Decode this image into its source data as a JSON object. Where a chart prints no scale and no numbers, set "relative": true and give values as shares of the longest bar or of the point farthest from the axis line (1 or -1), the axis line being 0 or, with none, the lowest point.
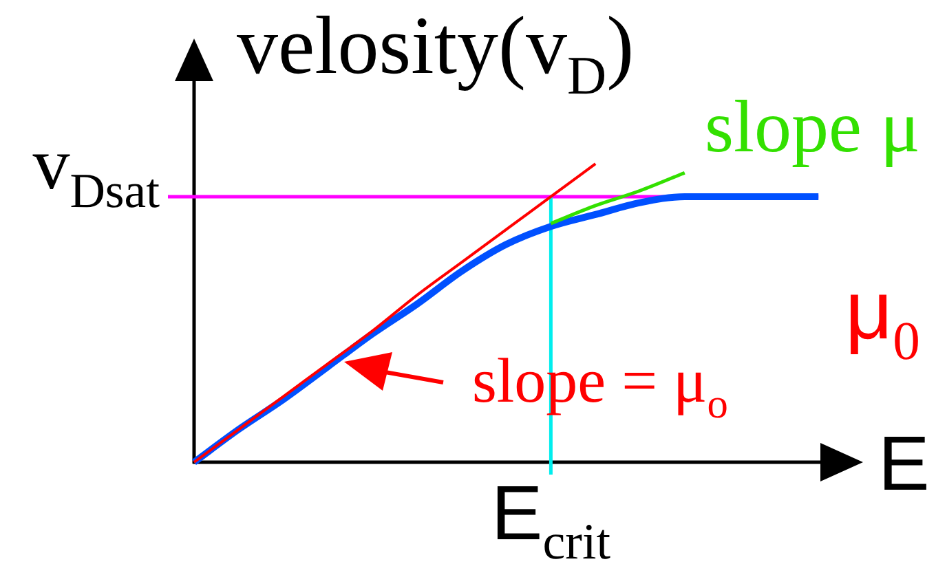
{
  "chart_data": {
    "type": "line",
    "relative": true,
    "ylabel": "velosity(v$_{D}$)",
    "xlabel": "E",
    "categories": [
      null,
      null,
      null,
      null,
      null,
      null,
      null,
      null,
      null,
      null,
      null,
      null,
      null,
      null,
      null,
      null
    ],
    "series": [
      {
        "color": "#0050ff",
        "values": [
          0,
          0.11,
          0.21,
          0.32,
          0.43,
          0.53,
          0.64,
          0.73,
          0.79,
          0.83,
          0.87,
          0.89,
          0.89,
          0.89,
          0.89,
          null
        ]
      },
      {
        "name": "slope = μ$_{o}$",
        "color": "#ff0000",
        "values": [
          0,
          0.11,
          0.22,
          0.33,
          0.44,
          0.56,
          0.67,
          0.78,
          0.89,
          1,
          null,
          null,
          null,
          null,
          null,
          null
        ]
      },
      {
        "name": "slope μ",
        "color": "#33e000",
        "values": [
          null,
          null,
          null,
          null,
          null,
          null,
          null,
          null,
          0.8,
          0.86,
          0.91,
          0.97,
          null,
          null,
          null,
          null
        ]
      }
    ],
    "ref_lines": [
      {
        "axis": "y",
        "value": 0.89,
        "label": "v$_{Dsat}$",
        "color": "#ff00ff"
      }
    ],
    "annotations": [
      "μ$_{0}$",
      "E$_{crit}$"
    ]
  }
}
